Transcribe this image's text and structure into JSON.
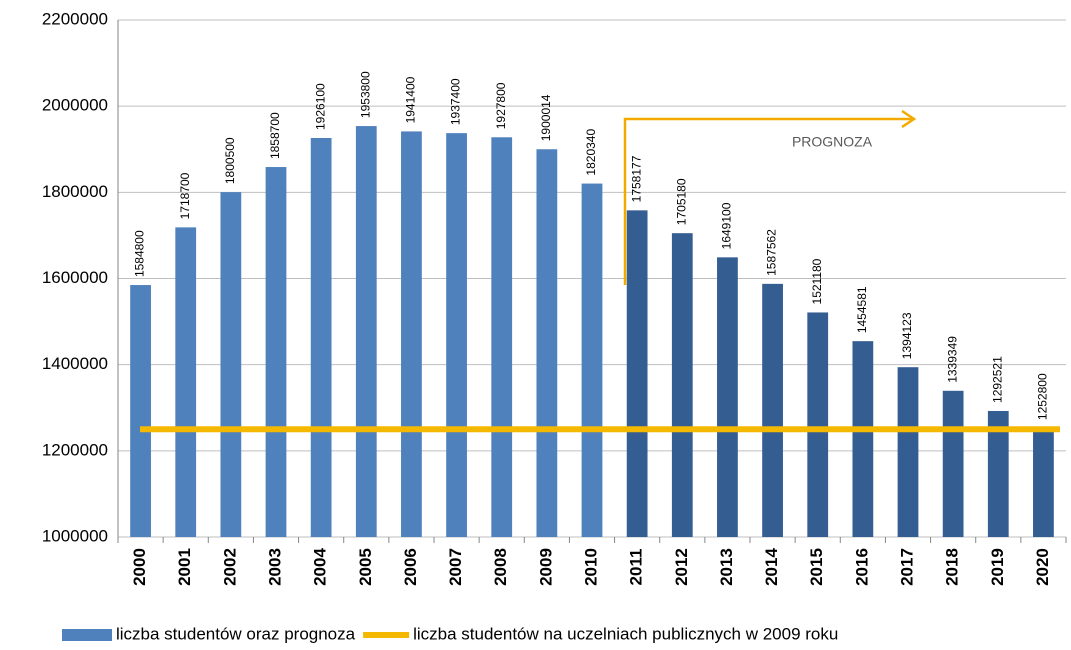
{
  "chart_data": {
    "type": "bar",
    "categories": [
      "2000",
      "2001",
      "2002",
      "2003",
      "2004",
      "2005",
      "2006",
      "2007",
      "2008",
      "2009",
      "2010",
      "2011",
      "2012",
      "2013",
      "2014",
      "2015",
      "2016",
      "2017",
      "2018",
      "2019",
      "2020"
    ],
    "series": [
      {
        "name": "liczba studentów oraz prognoza",
        "color": "#4f81bd",
        "colors": [
          "#4f81bd",
          "#4f81bd",
          "#4f81bd",
          "#4f81bd",
          "#4f81bd",
          "#4f81bd",
          "#4f81bd",
          "#4f81bd",
          "#4f81bd",
          "#4f81bd",
          "#4f81bd",
          "#345d91",
          "#345d91",
          "#345d91",
          "#345d91",
          "#345d91",
          "#345d91",
          "#345d91",
          "#345d91",
          "#345d91",
          "#345d91"
        ],
        "values": [
          1584800,
          1718700,
          1800500,
          1858700,
          1926100,
          1953800,
          1941400,
          1937400,
          1927800,
          1900014,
          1820340,
          1758177,
          1705180,
          1649100,
          1587562,
          1521180,
          1454581,
          1394123,
          1339349,
          1292521,
          1252800
        ]
      }
    ],
    "reference_line": {
      "name": "liczba studentów na uczelniach publicznych w 2009 roku",
      "color": "#f5b800",
      "value": 1250000
    },
    "annotation": "PROGNOZA",
    "ylim": [
      1000000,
      2200000
    ],
    "yticks": [
      1000000,
      1200000,
      1400000,
      1600000,
      1800000,
      2000000,
      2200000
    ],
    "grid": true
  }
}
